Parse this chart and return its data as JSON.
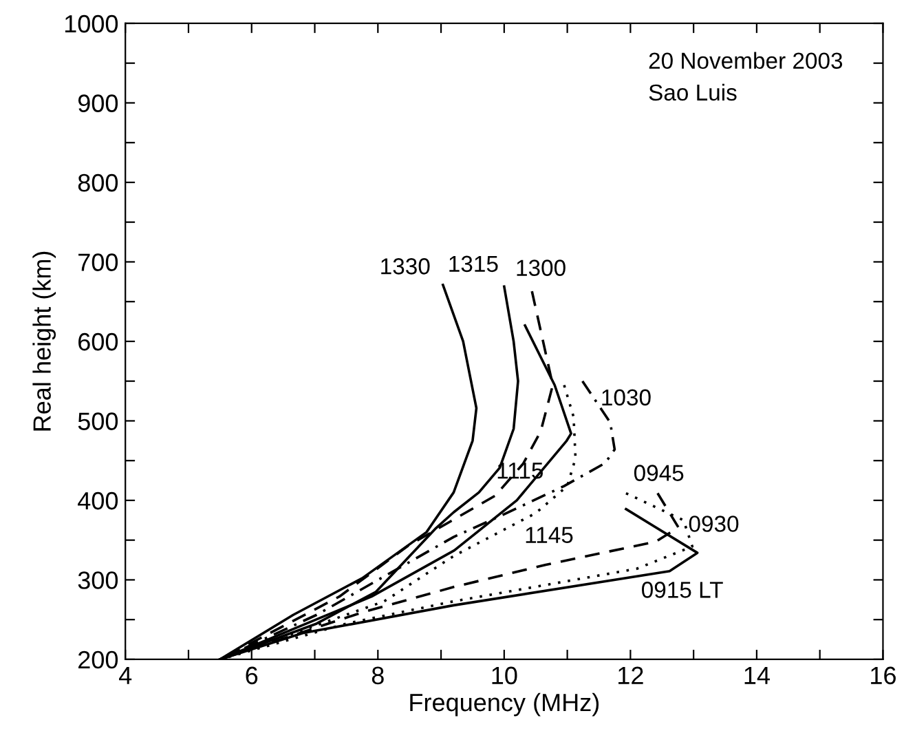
{
  "chart_data": {
    "type": "line",
    "xlabel": "Frequency (MHz)",
    "ylabel": "Real height (km)",
    "xlim": [
      4,
      16
    ],
    "ylim": [
      200,
      1000
    ],
    "xticks": [
      4,
      {
        "value": 5,
        "label": null
      },
      6,
      {
        "value": 7,
        "label": null
      },
      8,
      {
        "value": 9,
        "label": null
      },
      10,
      {
        "value": 11,
        "label": null
      },
      12,
      {
        "value": 13,
        "label": null
      },
      14,
      {
        "value": 15,
        "label": null
      },
      16
    ],
    "yticks": [
      200,
      {
        "value": 250,
        "label": null
      },
      300,
      {
        "value": 350,
        "label": null
      },
      400,
      {
        "value": 450,
        "label": null
      },
      500,
      {
        "value": 550,
        "label": null
      },
      600,
      {
        "value": 650,
        "label": null
      },
      700,
      {
        "value": 750,
        "label": null
      },
      800,
      {
        "value": 850,
        "label": null
      },
      900,
      {
        "value": 950,
        "label": null
      },
      1000
    ],
    "grid": false,
    "legend": false,
    "marker": "none",
    "series": [
      {
        "name": "1330",
        "color": "#000000",
        "line_style": "solid",
        "x": [
          9.03,
          9.35,
          9.56,
          9.5,
          9.2,
          8.77,
          7.75,
          6.66,
          5.5
        ],
        "values": [
          671,
          600,
          516,
          475,
          410,
          360,
          302,
          256,
          200
        ]
      },
      {
        "name": "1315",
        "color": "#000000",
        "line_style": "solid",
        "x": [
          10.0,
          10.15,
          10.22,
          10.15,
          9.93,
          9.6,
          9.2,
          8.92,
          7.97,
          7.03,
          5.5
        ],
        "values": [
          669,
          600,
          550,
          490,
          441,
          410,
          385,
          365,
          285,
          245,
          200
        ]
      },
      {
        "name": "1300",
        "color": "#000000",
        "line_style": "dashed",
        "x": [
          10.44,
          10.77,
          10.58,
          10.3,
          9.86,
          8.48,
          7.39,
          5.5
        ],
        "values": [
          663,
          545,
          487,
          446,
          406,
          343,
          279,
          200
        ]
      },
      {
        "name": "1115",
        "color": "#000000",
        "line_style": "solid",
        "x": [
          10.33,
          10.8,
          11.06,
          10.99,
          10.2,
          9.21,
          7.9,
          5.5
        ],
        "values": [
          620,
          545,
          484,
          475,
          400,
          337,
          279,
          200
        ]
      },
      {
        "name": "1030",
        "color": "#000000",
        "line_style": "dashdot",
        "x": [
          11.24,
          11.68,
          11.75,
          11.6,
          10.95,
          9.93,
          9.2,
          7.03,
          5.5
        ],
        "values": [
          550,
          498,
          464,
          447,
          418,
          380,
          354,
          256,
          200
        ]
      },
      {
        "name": "1145",
        "color": "#000000",
        "line_style": "dotted",
        "x": [
          10.95,
          11.1,
          11.13,
          11.0,
          10.5,
          9.2,
          8.1,
          5.5
        ],
        "values": [
          545,
          505,
          453,
          418,
          384,
          330,
          273,
          200
        ]
      },
      {
        "name": "0945",
        "color": "#000000",
        "line_style": "dashed",
        "x": [
          12.43,
          12.76,
          12.4,
          10.66,
          9.2,
          7.75,
          5.5
        ],
        "values": [
          409,
          366,
          348,
          319,
          291,
          259,
          200
        ]
      },
      {
        "name": "0930",
        "color": "#000000",
        "line_style": "dotted",
        "x": [
          11.93,
          12.84,
          12.98,
          12.1,
          9.2,
          7.5,
          5.5
        ],
        "values": [
          409,
          375,
          342,
          314,
          273,
          245,
          200
        ]
      },
      {
        "name": "0915 LT",
        "color": "#000000",
        "line_style": "solid",
        "x": [
          11.93,
          13.06,
          12.62,
          9.2,
          6.81,
          5.5
        ],
        "values": [
          389,
          334,
          311,
          268,
          233,
          200
        ]
      }
    ],
    "annotations": [
      "20 November 2003",
      "Sao Luis"
    ]
  }
}
